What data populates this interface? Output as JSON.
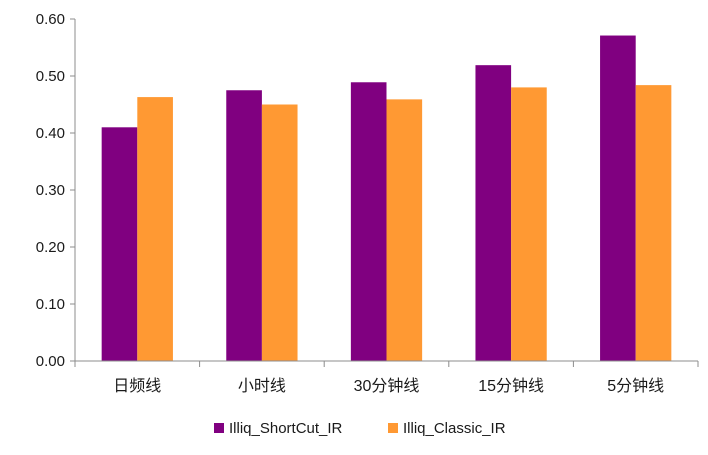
{
  "chart_data": {
    "type": "bar",
    "categories": [
      "日频线",
      "小时线",
      "30分钟线",
      "15分钟线",
      "5分钟线"
    ],
    "series": [
      {
        "name": "Illiq_ShortCut_IR",
        "color": "#800080",
        "values": [
          0.41,
          0.475,
          0.489,
          0.519,
          0.571
        ]
      },
      {
        "name": "Illiq_Classic_IR",
        "color": "#FF9933",
        "values": [
          0.463,
          0.45,
          0.459,
          0.48,
          0.484
        ]
      }
    ],
    "y_ticks": [
      "0.00",
      "0.10",
      "0.20",
      "0.30",
      "0.40",
      "0.50",
      "0.60"
    ],
    "ylim": [
      0,
      0.6
    ],
    "grid": false,
    "legend_position": "bottom"
  }
}
